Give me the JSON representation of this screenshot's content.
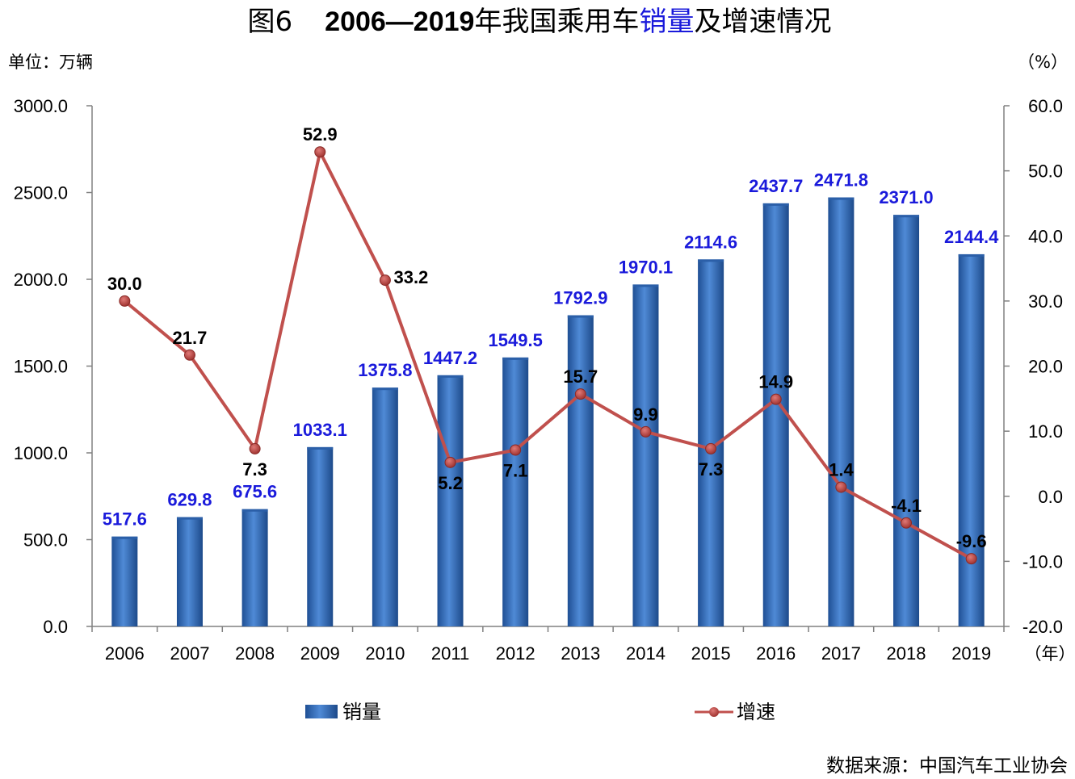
{
  "title": {
    "prefix": "图6",
    "years": "2006—2019",
    "part1": "年我国乘用车",
    "part2": "销量",
    "part3": "及增速情况"
  },
  "left_unit": "单位：万辆",
  "right_unit": "（%）",
  "x_unit": "（年）",
  "source": "数据来源：中国汽车工业协会",
  "colors": {
    "bar": "#3f78c4",
    "bar_dark": "#1f4f94",
    "line": "#c0504d",
    "bar_label": "#1a1adb"
  },
  "chart_data": {
    "type": "bar+line",
    "categories": [
      "2006",
      "2007",
      "2008",
      "2009",
      "2010",
      "2011",
      "2012",
      "2013",
      "2014",
      "2015",
      "2016",
      "2017",
      "2018",
      "2019"
    ],
    "series": [
      {
        "name": "销量",
        "type": "bar",
        "axis": "left",
        "values": [
          517.6,
          629.8,
          675.6,
          1033.1,
          1375.8,
          1447.2,
          1549.5,
          1792.9,
          1970.1,
          2114.6,
          2437.7,
          2471.8,
          2371.0,
          2144.4
        ],
        "labels": [
          "517.6",
          "629.8",
          "675.6",
          "1033.1",
          "1375.8",
          "1447.2",
          "1549.5",
          "1792.9",
          "1970.1",
          "2114.6",
          "2437.7",
          "2471.8",
          "2371.0",
          "2144.4"
        ]
      },
      {
        "name": "增速",
        "type": "line",
        "axis": "right",
        "values": [
          30.0,
          21.7,
          7.3,
          52.9,
          33.2,
          5.2,
          7.1,
          15.7,
          9.9,
          7.3,
          14.9,
          1.4,
          -4.1,
          -9.6
        ],
        "labels": [
          "30.0",
          "21.7",
          "7.3",
          "52.9",
          "33.2",
          "5.2",
          "7.1",
          "15.7",
          "9.9",
          "7.3",
          "14.9",
          "1.4",
          "-4.1",
          "-9.6"
        ]
      }
    ],
    "y_left": {
      "range": [
        0,
        3000
      ],
      "ticks": [
        0,
        500,
        1000,
        1500,
        2000,
        2500,
        3000
      ],
      "tick_labels": [
        "0.0",
        "500.0",
        "1000.0",
        "1500.0",
        "2000.0",
        "2500.0",
        "3000.0"
      ]
    },
    "y_right": {
      "range": [
        -20,
        60
      ],
      "ticks": [
        -20,
        -10,
        0,
        10,
        20,
        30,
        40,
        50,
        60
      ],
      "tick_labels": [
        "-20.0",
        "-10.0",
        "0.0",
        "10.0",
        "20.0",
        "30.0",
        "40.0",
        "50.0",
        "60.0"
      ]
    },
    "grid": false,
    "legend_position": "bottom"
  }
}
